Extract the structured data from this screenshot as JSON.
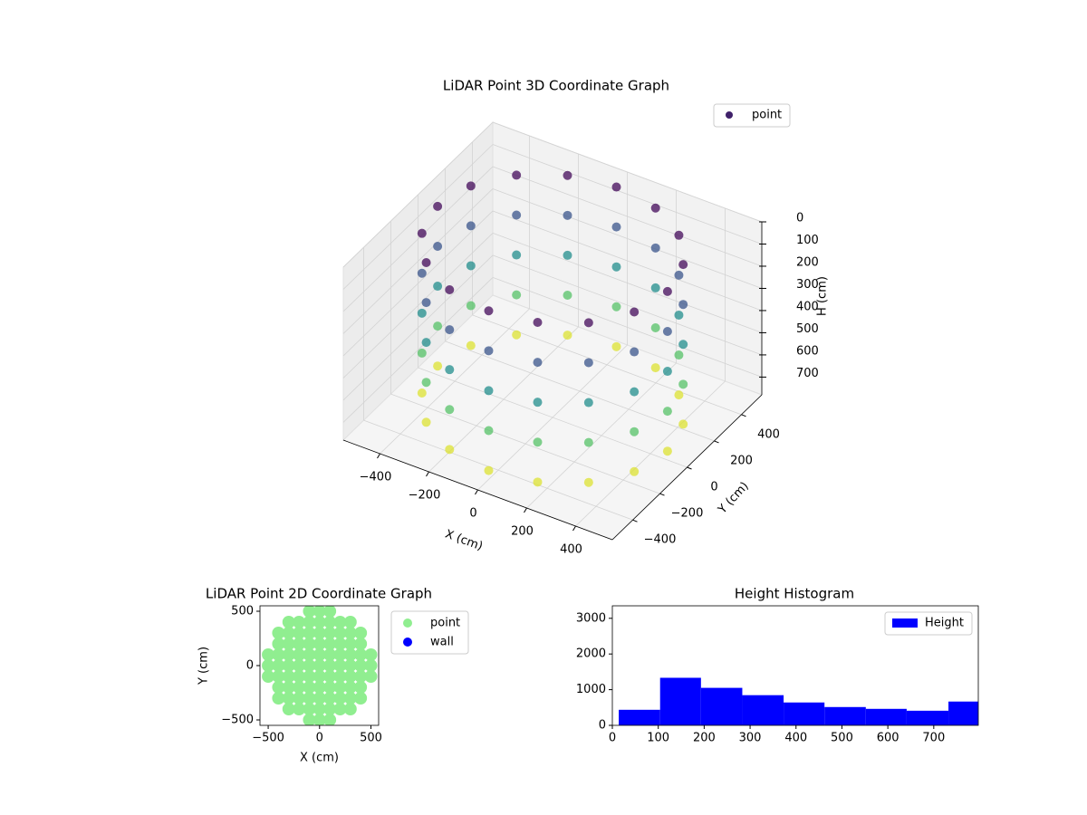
{
  "chart_data": [
    {
      "type": "scatter3d",
      "title": "LiDAR Point 3D Coordinate Graph",
      "xlabel": "X (cm)",
      "ylabel": "Y (cm)",
      "zlabel": "H (cm)",
      "xlim": [
        -550,
        550
      ],
      "ylim": [
        -550,
        550
      ],
      "zlim": [
        0,
        780
      ],
      "z_inverted": true,
      "xticks": [
        {
          "value": -400,
          "label": "−400"
        },
        {
          "value": -200,
          "label": "−200"
        },
        0,
        200,
        400
      ],
      "yticks": [
        {
          "value": -400,
          "label": "−400"
        },
        {
          "value": -200,
          "label": "−200"
        },
        0,
        200,
        400
      ],
      "zticks": [
        0,
        100,
        200,
        300,
        400,
        500,
        600,
        700
      ],
      "grid": true,
      "legend": "upper right",
      "cmap": "viridis",
      "series": [
        {
          "name": "point",
          "x": [
            470,
            434,
            332,
            180,
            0,
            -180,
            -332,
            -434,
            -470,
            -434,
            -332,
            -180,
            0,
            180,
            332,
            434,
            470,
            434,
            332,
            180,
            0,
            -180,
            -332,
            -434,
            -470,
            -434,
            -332,
            -180,
            0,
            180,
            332,
            434,
            470,
            434,
            332,
            180,
            0,
            -180,
            -332,
            -434,
            -470,
            -434,
            -332,
            -180,
            0,
            180,
            332,
            434,
            470,
            434,
            332,
            180,
            0,
            -180,
            -332,
            -434,
            -470,
            -434,
            -332,
            -180,
            0,
            180,
            332,
            434,
            470,
            434,
            332,
            180,
            0,
            -180,
            -332,
            -434,
            -470,
            -434,
            -332,
            -180,
            0,
            180,
            332,
            434
          ],
          "y": [
            0,
            180,
            332,
            434,
            470,
            434,
            332,
            180,
            0,
            -180,
            -332,
            -434,
            -470,
            -434,
            -332,
            -180,
            0,
            180,
            332,
            434,
            470,
            434,
            332,
            180,
            0,
            -180,
            -332,
            -434,
            -470,
            -434,
            -332,
            -180,
            0,
            180,
            332,
            434,
            470,
            434,
            332,
            180,
            0,
            -180,
            -332,
            -434,
            -470,
            -434,
            -332,
            -180,
            0,
            180,
            332,
            434,
            470,
            434,
            332,
            180,
            0,
            -180,
            -332,
            -434,
            -470,
            -434,
            -332,
            -180,
            0,
            180,
            332,
            434,
            470,
            434,
            332,
            180,
            0,
            -180,
            -332,
            -434,
            -470,
            -434,
            -332,
            -180
          ],
          "z": [
            20,
            20,
            20,
            20,
            20,
            20,
            20,
            20,
            20,
            20,
            20,
            20,
            20,
            20,
            20,
            20,
            200,
            200,
            200,
            200,
            200,
            200,
            200,
            200,
            200,
            200,
            200,
            200,
            200,
            200,
            200,
            200,
            380,
            380,
            380,
            380,
            380,
            380,
            380,
            380,
            380,
            380,
            380,
            380,
            380,
            380,
            380,
            380,
            560,
            560,
            560,
            560,
            560,
            560,
            560,
            560,
            560,
            560,
            560,
            560,
            560,
            560,
            560,
            560,
            740,
            740,
            740,
            740,
            740,
            740,
            740,
            740,
            740,
            740,
            740,
            740,
            740,
            740,
            740,
            740
          ]
        }
      ]
    },
    {
      "type": "scatter",
      "title": "LiDAR Point 2D Coordinate Graph",
      "xlabel": "X (cm)",
      "ylabel": "Y (cm)",
      "xlim": [
        -580,
        575
      ],
      "ylim": [
        -550,
        550
      ],
      "xticks": [
        {
          "value": -500,
          "label": "−500"
        },
        0,
        500
      ],
      "yticks": [
        {
          "value": -500,
          "label": "−500"
        },
        0,
        500
      ],
      "legend": "outside upper right",
      "series": [
        {
          "name": "point",
          "color": "#90ee90",
          "x": [
            -100,
            0,
            100,
            -300,
            -200,
            -100,
            0,
            100,
            200,
            300,
            -400,
            -300,
            -200,
            -100,
            0,
            100,
            200,
            300,
            400,
            -400,
            -300,
            -200,
            -100,
            0,
            100,
            200,
            300,
            400,
            -500,
            -400,
            -300,
            -200,
            -100,
            0,
            100,
            200,
            300,
            400,
            500,
            -500,
            -400,
            -300,
            -200,
            -100,
            0,
            100,
            200,
            300,
            400,
            500,
            -500,
            -400,
            -300,
            -200,
            -100,
            0,
            100,
            200,
            300,
            400,
            500,
            -400,
            -300,
            -200,
            -100,
            0,
            100,
            200,
            300,
            400,
            -400,
            -300,
            -200,
            -100,
            0,
            100,
            200,
            300,
            400,
            -300,
            -200,
            -100,
            0,
            100,
            200,
            300,
            -100,
            0,
            100
          ],
          "y": [
            500,
            500,
            500,
            400,
            400,
            400,
            400,
            400,
            400,
            400,
            300,
            300,
            300,
            300,
            300,
            300,
            300,
            300,
            300,
            200,
            200,
            200,
            200,
            200,
            200,
            200,
            200,
            200,
            100,
            100,
            100,
            100,
            100,
            100,
            100,
            100,
            100,
            100,
            100,
            0,
            0,
            0,
            0,
            0,
            0,
            0,
            0,
            0,
            0,
            0,
            -100,
            -100,
            -100,
            -100,
            -100,
            -100,
            -100,
            -100,
            -100,
            -100,
            -100,
            -200,
            -200,
            -200,
            -200,
            -200,
            -200,
            -200,
            -200,
            -200,
            -300,
            -300,
            -300,
            -300,
            -300,
            -300,
            -300,
            -300,
            -300,
            -400,
            -400,
            -400,
            -400,
            -400,
            -400,
            -400,
            -500,
            -500,
            -500
          ]
        },
        {
          "name": "wall",
          "color": "#0000ff",
          "x": [],
          "y": []
        }
      ]
    },
    {
      "type": "histogram",
      "title": "Height Histogram",
      "xlim": [
        0,
        797
      ],
      "ylim": [
        0,
        3350
      ],
      "xticks": [
        0,
        100,
        200,
        300,
        400,
        500,
        600,
        700
      ],
      "yticks": [
        0,
        1000,
        2000,
        3000
      ],
      "legend": "upper right",
      "bins": [
        14,
        104,
        193,
        283,
        373,
        462,
        552,
        641,
        732,
        821
      ],
      "series": [
        {
          "name": "Height",
          "color": "#0000ff",
          "values": [
            436,
            1333,
            1051,
            846,
            641,
            513,
            462,
            410,
            667
          ]
        }
      ]
    }
  ]
}
